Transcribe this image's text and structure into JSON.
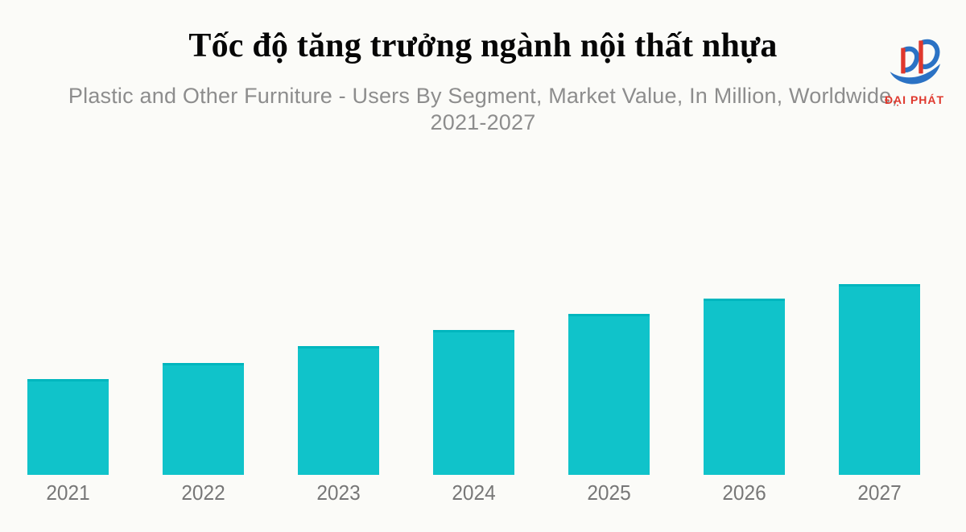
{
  "page": {
    "background": "#FBFBF8"
  },
  "header": {
    "title": "Tốc độ tăng trưởng ngành nội thất nhựa"
  },
  "logo": {
    "brand": "ĐẠI PHÁT",
    "red": "#DF382D",
    "blue": "#2B72C4"
  },
  "subtitle": {
    "line1": "Plastic and Other Furniture - Users By Segment, Market Value, In Million, Worldwide,",
    "line2": "2021-2027"
  },
  "chart_data": {
    "type": "bar",
    "title": "Plastic and Other Furniture - Users By Segment, Market Value, In Million, Worldwide, 2021-2027",
    "categories": [
      "2021",
      "2022",
      "2023",
      "2024",
      "2025",
      "2026",
      "2027"
    ],
    "values": [
      119,
      139,
      160,
      180,
      200,
      219,
      237
    ],
    "values_note": "no numeric axis or data labels visible; values are estimated relative bar heights in pixels",
    "ylim": [
      0,
      237
    ],
    "xlabel": "",
    "ylabel": "",
    "grid": false,
    "legend": false,
    "bar_color": "#10C3CA",
    "bar_top_edge_color": "#00B6BE",
    "x_tick_color": "#777777"
  }
}
